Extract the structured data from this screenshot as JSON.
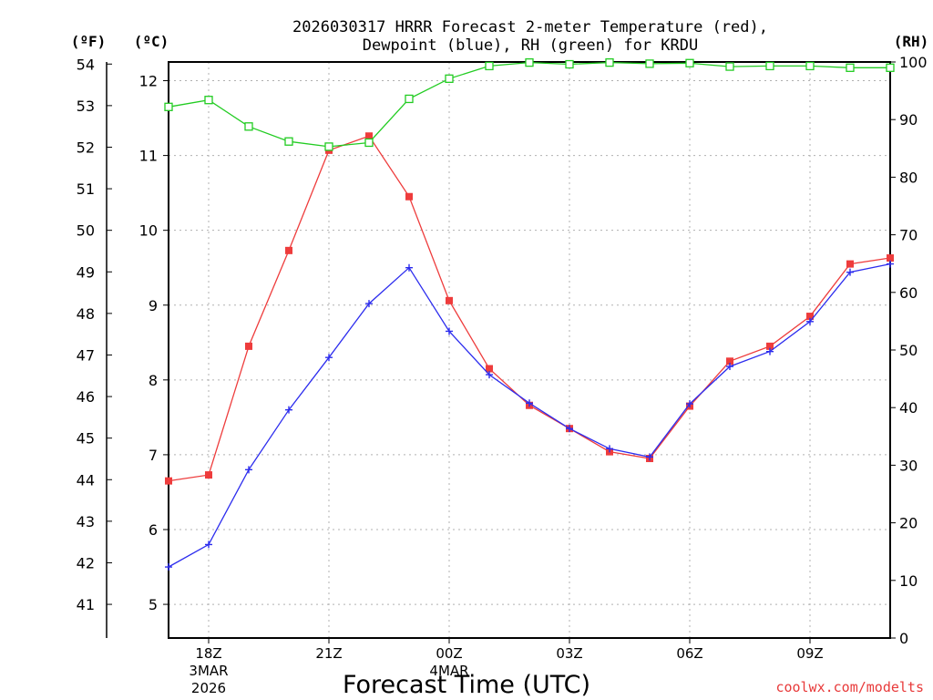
{
  "chart_data": {
    "type": "line",
    "title_line1": "2026030317 HRRR Forecast 2-meter Temperature (red),",
    "title_line2": "Dewpoint (blue), RH (green) for KRDU",
    "unit_f": "(ºF)",
    "unit_c": "(ºC)",
    "unit_rh": "(RH)",
    "xlabel": "Forecast Time (UTC)",
    "credit": "coolwx.com/modelts",
    "grid": true,
    "x_hours": [
      17,
      18,
      19,
      20,
      21,
      22,
      23,
      24,
      25,
      26,
      27,
      28,
      29,
      30,
      31,
      32,
      33,
      34,
      35
    ],
    "x_ticks": [
      {
        "hour": 18,
        "label": "18Z",
        "sub1": "3MAR",
        "sub2": "2026"
      },
      {
        "hour": 21,
        "label": "21Z",
        "sub1": "",
        "sub2": ""
      },
      {
        "hour": 24,
        "label": "00Z",
        "sub1": "4MAR",
        "sub2": ""
      },
      {
        "hour": 27,
        "label": "03Z",
        "sub1": "",
        "sub2": ""
      },
      {
        "hour": 30,
        "label": "06Z",
        "sub1": "",
        "sub2": ""
      },
      {
        "hour": 33,
        "label": "09Z",
        "sub1": "",
        "sub2": ""
      }
    ],
    "x_range": [
      17,
      35
    ],
    "ylim_c": [
      4.55,
      12.25
    ],
    "ylim_rh": [
      0,
      100
    ],
    "c_ticks": [
      "5",
      "6",
      "7",
      "8",
      "9",
      "10",
      "11",
      "12"
    ],
    "f_ticks": [
      "41",
      "42",
      "43",
      "44",
      "45",
      "46",
      "47",
      "48",
      "49",
      "50",
      "51",
      "52",
      "53",
      "54"
    ],
    "rh_ticks": [
      "0",
      "10",
      "20",
      "30",
      "40",
      "50",
      "60",
      "70",
      "80",
      "90",
      "100"
    ],
    "series": [
      {
        "name": "Temperature",
        "axis": "C",
        "color": "#ee3c3c",
        "marker": "filled-square",
        "values": [
          6.65,
          6.73,
          8.45,
          9.73,
          11.07,
          11.26,
          10.45,
          9.06,
          8.15,
          7.66,
          7.35,
          7.04,
          6.95,
          7.65,
          8.25,
          8.45,
          8.85,
          9.55,
          9.63
        ]
      },
      {
        "name": "Dewpoint",
        "axis": "C",
        "color": "#2c2cee",
        "marker": "plus",
        "values": [
          5.5,
          5.8,
          6.8,
          7.6,
          8.3,
          9.02,
          9.5,
          8.65,
          8.07,
          7.69,
          7.35,
          7.08,
          6.97,
          7.68,
          8.18,
          8.38,
          8.78,
          9.44,
          9.55
        ]
      },
      {
        "name": "RH",
        "axis": "RH",
        "color": "#22cc22",
        "marker": "open-square",
        "values": [
          92.2,
          93.4,
          88.8,
          86.2,
          85.3,
          86.0,
          93.6,
          97.1,
          99.3,
          99.9,
          99.6,
          99.9,
          99.7,
          99.8,
          99.2,
          99.3,
          99.3,
          99.0,
          99.0
        ]
      }
    ]
  }
}
